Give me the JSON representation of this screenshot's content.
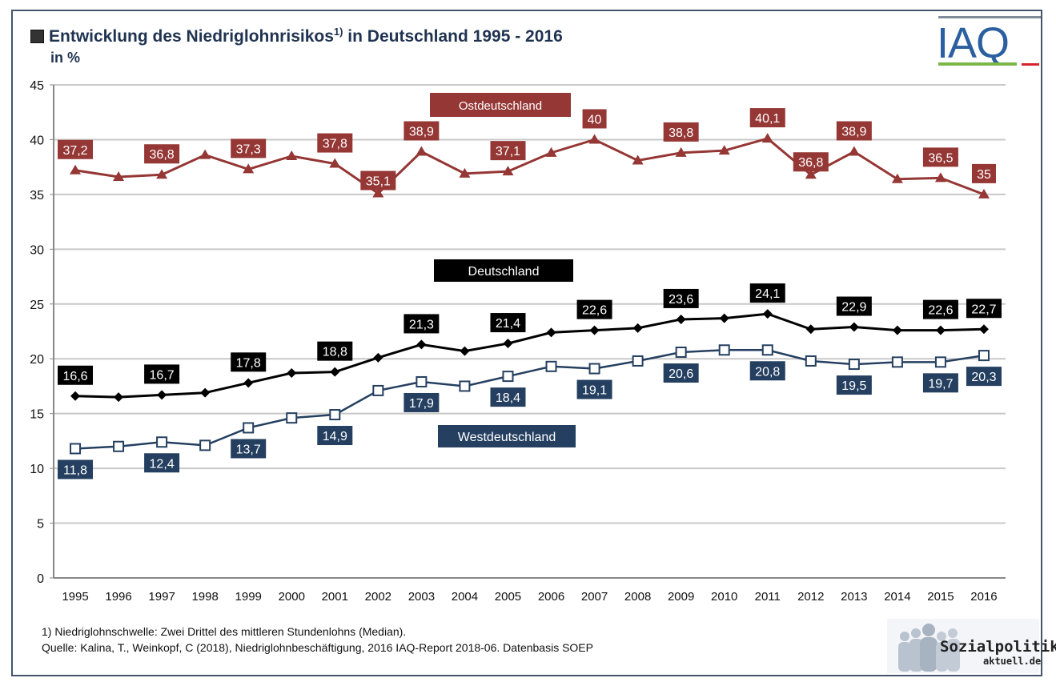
{
  "header": {
    "title": "Entwicklung des Niedriglohnrisikos",
    "title_superscript": "1)",
    "title_suffix": " in Deutschland 1995 - 2016",
    "subtitle": "in %",
    "logo": "IAQ"
  },
  "footer": {
    "footnote": "1) Niedriglohnschwelle: Zwei Drittel des mittleren Stundenlohns (Median).",
    "source": "Quelle: Kalina, T., Weinkopf, C (2018), Niedriglohnbeschäftigung, 2016 IAQ-Report 2018-06. Datenbasis SOEP",
    "logo_name": "Sozialpolitik-",
    "logo_sub": "aktuell.de"
  },
  "chart_data": {
    "type": "line",
    "title": "Entwicklung des Niedriglohnrisikos 1) in Deutschland 1995 - 2016",
    "subtitle": "in %",
    "xlabel": "",
    "ylabel": "in %",
    "ylim": [
      0,
      45
    ],
    "yticks": [
      0,
      5,
      10,
      15,
      20,
      25,
      30,
      35,
      40,
      45
    ],
    "grid": true,
    "x": [
      "1995",
      "1996",
      "1997",
      "1998",
      "1999",
      "2000",
      "2001",
      "2002",
      "2003",
      "2004",
      "2005",
      "2006",
      "2007",
      "2008",
      "2009",
      "2010",
      "2011",
      "2012",
      "2013",
      "2014",
      "2015",
      "2016"
    ],
    "series": [
      {
        "name": "Ostdeutschland",
        "color": "#953735",
        "marker": "triangle",
        "legend_label_value": 43.6,
        "legend_label_position": "2000-2005",
        "values": [
          37.2,
          36.6,
          36.8,
          38.6,
          37.3,
          38.5,
          37.8,
          35.1,
          38.9,
          36.9,
          37.1,
          38.8,
          40.0,
          38.1,
          38.8,
          39.0,
          40.1,
          36.8,
          38.9,
          36.4,
          36.5,
          35.0
        ],
        "labels": [
          "37,2",
          "",
          "36,8",
          "",
          "37,3",
          "",
          "37,8",
          "35,1",
          "38,9",
          "",
          "37,1",
          "",
          "40",
          "",
          "38,8",
          "",
          "40,1",
          "36,8",
          "38,9",
          "",
          "36,5",
          "35"
        ],
        "label_pos": [
          "above",
          "",
          "above",
          "",
          "above",
          "",
          "above",
          "above",
          "above",
          "",
          "above",
          "",
          "above",
          "",
          "above",
          "",
          "above",
          "above",
          "above",
          "",
          "above",
          "above"
        ]
      },
      {
        "name": "Deutschland",
        "color": "#000000",
        "marker": "diamond",
        "legend_label_value": 27.8,
        "values": [
          16.6,
          16.5,
          16.7,
          16.9,
          17.8,
          18.7,
          18.8,
          20.1,
          21.3,
          20.7,
          21.4,
          22.4,
          22.6,
          22.8,
          23.6,
          23.7,
          24.1,
          22.7,
          22.9,
          22.6,
          22.6,
          22.7
        ],
        "labels": [
          "16,6",
          "",
          "16,7",
          "",
          "17,8",
          "",
          "18,8",
          "",
          "21,3",
          "",
          "21,4",
          "",
          "22,6",
          "",
          "23,6",
          "",
          "24,1",
          "",
          "22,9",
          "",
          "22,6",
          "22,7"
        ],
        "label_pos": [
          "above",
          "",
          "above",
          "",
          "above",
          "",
          "above",
          "",
          "above",
          "",
          "above",
          "",
          "above",
          "",
          "above",
          "",
          "above",
          "",
          "above",
          "",
          "above",
          "above"
        ]
      },
      {
        "name": "Westdeutschland",
        "color": "#243f60",
        "marker": "square-open",
        "legend_label_value": 13.0,
        "values": [
          11.8,
          12.0,
          12.4,
          12.1,
          13.7,
          14.6,
          14.9,
          17.1,
          17.9,
          17.5,
          18.4,
          19.3,
          19.1,
          19.8,
          20.6,
          20.8,
          20.8,
          19.8,
          19.5,
          19.7,
          19.7,
          20.3
        ],
        "labels": [
          "11,8",
          "",
          "12,4",
          "",
          "13,7",
          "",
          "14,9",
          "",
          "17,9",
          "",
          "18,4",
          "",
          "19,1",
          "",
          "20,6",
          "",
          "20,8",
          "",
          "19,5",
          "",
          "19,7",
          "20,3"
        ],
        "label_pos": [
          "below",
          "",
          "below",
          "",
          "below",
          "",
          "below",
          "",
          "below",
          "",
          "below",
          "",
          "below",
          "",
          "below",
          "",
          "below",
          "",
          "below",
          "",
          "below",
          "below"
        ]
      }
    ],
    "legend": "inline-labels"
  }
}
